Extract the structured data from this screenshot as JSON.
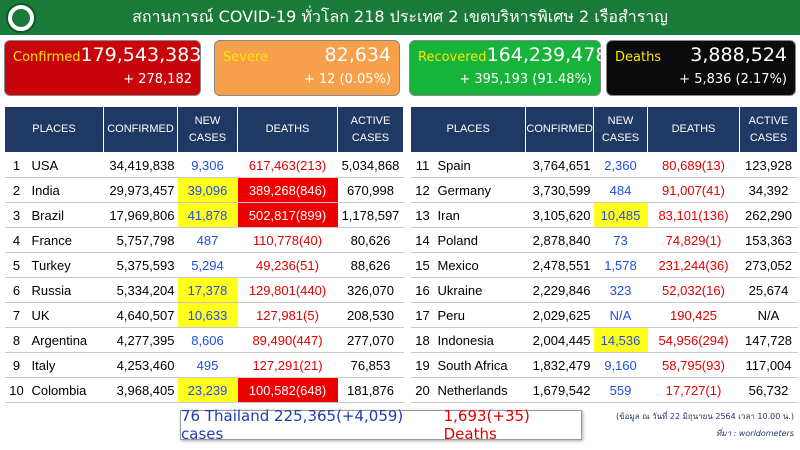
{
  "header": {
    "title": "สถานการณ์ COVID-19 ทั่วโลก 218 ประเทศ 2 เขตบริหารพิเศษ 2 เรือสำราญ"
  },
  "cards": {
    "confirmed": {
      "label": "Confirmed",
      "value": "179,543,383",
      "delta": "+ 278,182"
    },
    "severe": {
      "label": "Severe",
      "value": "82,634",
      "delta": "+ 12 (0.05%)"
    },
    "recovered": {
      "label": "Recovered",
      "value": "164,239,478",
      "delta": "+ 395,193 (91.48%)"
    },
    "deaths": {
      "label": "Deaths",
      "value": "3,888,524",
      "delta": "+ 5,836 (2.17%)"
    }
  },
  "table_headers": {
    "places": "PLACES",
    "confirmed": "CONFIRMED",
    "new_cases_1": "NEW",
    "new_cases_2": "CASES",
    "deaths": "DEATHS",
    "active_1": "ACTIVE",
    "active_2": "CASES"
  },
  "left_rows": [
    {
      "rank": "1",
      "place": "USA",
      "confirmed": "34,419,838",
      "new": "9,306",
      "deaths": "617,463(213)",
      "active": "5,034,868",
      "new_hl": "",
      "deaths_hl": ""
    },
    {
      "rank": "2",
      "place": "India",
      "confirmed": "29,973,457",
      "new": "39,096",
      "deaths": "389,268(846)",
      "active": "670,998",
      "new_hl": "yellow",
      "deaths_hl": "red"
    },
    {
      "rank": "3",
      "place": "Brazil",
      "confirmed": "17,969,806",
      "new": "41,878",
      "deaths": "502,817(899)",
      "active": "1,178,597",
      "new_hl": "yellow",
      "deaths_hl": "red"
    },
    {
      "rank": "4",
      "place": "France",
      "confirmed": "5,757,798",
      "new": "487",
      "deaths": "110,778(40)",
      "active": "80,626",
      "new_hl": "",
      "deaths_hl": ""
    },
    {
      "rank": "5",
      "place": "Turkey",
      "confirmed": "5,375,593",
      "new": "5,294",
      "deaths": "49,236(51)",
      "active": "88,626",
      "new_hl": "",
      "deaths_hl": ""
    },
    {
      "rank": "6",
      "place": "Russia",
      "confirmed": "5,334,204",
      "new": "17,378",
      "deaths": "129,801(440)",
      "active": "326,070",
      "new_hl": "yellow",
      "deaths_hl": ""
    },
    {
      "rank": "7",
      "place": "UK",
      "confirmed": "4,640,507",
      "new": "10,633",
      "deaths": "127,981(5)",
      "active": "208,530",
      "new_hl": "yellow",
      "deaths_hl": ""
    },
    {
      "rank": "8",
      "place": "Argentina",
      "confirmed": "4,277,395",
      "new": "8,606",
      "deaths": "89,490(447)",
      "active": "277,070",
      "new_hl": "",
      "deaths_hl": ""
    },
    {
      "rank": "9",
      "place": "Italy",
      "confirmed": "4,253,460",
      "new": "495",
      "deaths": "127,291(21)",
      "active": "76,853",
      "new_hl": "",
      "deaths_hl": ""
    },
    {
      "rank": "10",
      "place": "Colombia",
      "confirmed": "3,968,405",
      "new": "23,239",
      "deaths": "100,582(648)",
      "active": "181,876",
      "new_hl": "yellow",
      "deaths_hl": "red"
    }
  ],
  "right_rows": [
    {
      "rank": "11",
      "place": "Spain",
      "confirmed": "3,764,651",
      "new": "2,360",
      "deaths": "80,689(13)",
      "active": "123,928",
      "new_hl": "",
      "deaths_hl": ""
    },
    {
      "rank": "12",
      "place": "Germany",
      "confirmed": "3,730,599",
      "new": "484",
      "deaths": "91,007(41)",
      "active": "34,392",
      "new_hl": "",
      "deaths_hl": ""
    },
    {
      "rank": "13",
      "place": "Iran",
      "confirmed": "3,105,620",
      "new": "10,485",
      "deaths": "83,101(136)",
      "active": "262,290",
      "new_hl": "yellow",
      "deaths_hl": ""
    },
    {
      "rank": "14",
      "place": "Poland",
      "confirmed": "2,878,840",
      "new": "73",
      "deaths": "74,829(1)",
      "active": "153,363",
      "new_hl": "",
      "deaths_hl": ""
    },
    {
      "rank": "15",
      "place": "Mexico",
      "confirmed": "2,478,551",
      "new": "1,578",
      "deaths": "231,244(36)",
      "active": "273,052",
      "new_hl": "",
      "deaths_hl": ""
    },
    {
      "rank": "16",
      "place": "Ukraine",
      "confirmed": "2,229,846",
      "new": "323",
      "deaths": "52,032(16)",
      "active": "25,674",
      "new_hl": "",
      "deaths_hl": ""
    },
    {
      "rank": "17",
      "place": "Peru",
      "confirmed": "2,029,625",
      "new": "N/A",
      "deaths": "190,425",
      "active": "N/A",
      "new_hl": "",
      "deaths_hl": ""
    },
    {
      "rank": "18",
      "place": "Indonesia",
      "confirmed": "2,004,445",
      "new": "14,536",
      "deaths": "54,956(294)",
      "active": "147,728",
      "new_hl": "yellow",
      "deaths_hl": ""
    },
    {
      "rank": "19",
      "place": "South Africa",
      "confirmed": "1,832,479",
      "new": "9,160",
      "deaths": "58,795(93)",
      "active": "117,004",
      "new_hl": "",
      "deaths_hl": ""
    },
    {
      "rank": "20",
      "place": "Netherlands",
      "confirmed": "1,679,542",
      "new": "559",
      "deaths": "17,727(1)",
      "active": "56,732",
      "new_hl": "",
      "deaths_hl": ""
    }
  ],
  "thailand": {
    "blue_text": "76 Thailand 225,365(+4,059) cases",
    "red_text": "1,693(+35) Deaths"
  },
  "notes": {
    "date": "(ข้อมูล ณ วันที่ 22 มิถุนายน 2564 เวลา 10.00 น.)",
    "source": "ที่มา : worldometers"
  },
  "colors": {
    "header": "#1a7a3a",
    "confirmed": "#c8050a",
    "severe": "#f7a04b",
    "recovered": "#17b43b",
    "deaths": "#0b0b0b",
    "table_header": "#1f3864",
    "highlight_yellow": "#ffff1a",
    "highlight_red": "#ee0000"
  }
}
